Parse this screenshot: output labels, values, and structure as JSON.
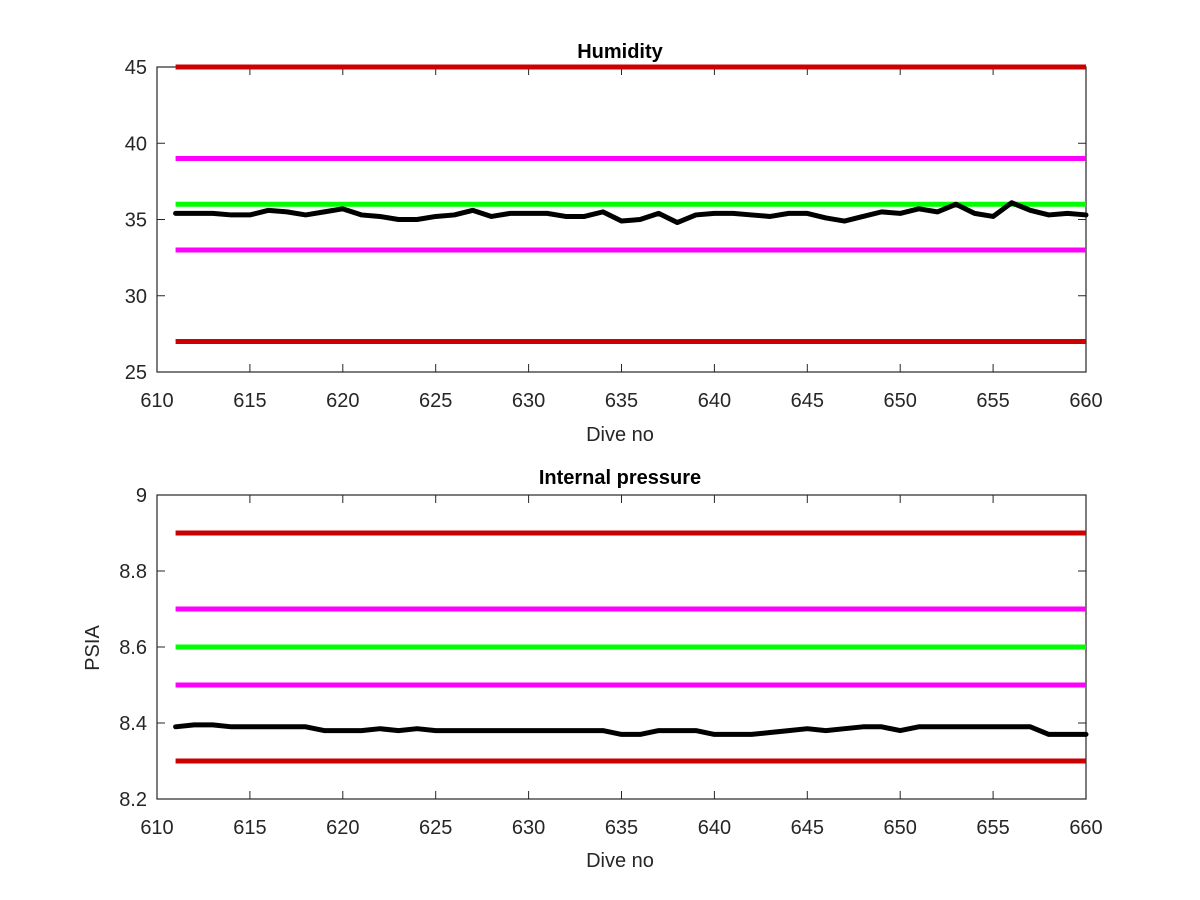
{
  "chart_data": [
    {
      "type": "line",
      "title": "Humidity",
      "xlabel": "Dive no",
      "ylabel": "",
      "xlim": [
        610,
        660
      ],
      "ylim": [
        25,
        45
      ],
      "xticks": [
        610,
        615,
        620,
        625,
        630,
        635,
        640,
        645,
        650,
        655,
        660
      ],
      "yticks": [
        25,
        30,
        35,
        40,
        45
      ],
      "grid": false,
      "legend": "none",
      "reference_lines": [
        {
          "y": 45,
          "color": "#cc0000"
        },
        {
          "y": 39,
          "color": "#ff00ff"
        },
        {
          "y": 36,
          "color": "#00ff00"
        },
        {
          "y": 33,
          "color": "#ff00ff"
        },
        {
          "y": 27,
          "color": "#cc0000"
        }
      ],
      "series": [
        {
          "color": "#000000",
          "x": [
            611,
            612,
            613,
            614,
            615,
            616,
            617,
            618,
            619,
            620,
            621,
            622,
            623,
            624,
            625,
            626,
            627,
            628,
            629,
            630,
            631,
            632,
            633,
            634,
            635,
            636,
            637,
            638,
            639,
            640,
            641,
            642,
            643,
            644,
            645,
            646,
            647,
            648,
            649,
            650,
            651,
            652,
            653,
            654,
            655,
            656,
            657,
            658,
            659,
            660
          ],
          "values": [
            35.4,
            35.4,
            35.4,
            35.3,
            35.3,
            35.6,
            35.5,
            35.3,
            35.5,
            35.7,
            35.3,
            35.2,
            35.0,
            35.0,
            35.2,
            35.3,
            35.6,
            35.2,
            35.4,
            35.4,
            35.4,
            35.2,
            35.2,
            35.5,
            34.9,
            35.0,
            35.4,
            34.8,
            35.3,
            35.4,
            35.4,
            35.3,
            35.2,
            35.4,
            35.4,
            35.1,
            34.9,
            35.2,
            35.5,
            35.4,
            35.7,
            35.5,
            36.0,
            35.4,
            35.2,
            36.1,
            35.6,
            35.3,
            35.4,
            35.3
          ]
        }
      ]
    },
    {
      "type": "line",
      "title": "Internal pressure",
      "xlabel": "Dive no",
      "ylabel": "PSIA",
      "xlim": [
        610,
        660
      ],
      "ylim": [
        8.2,
        9
      ],
      "xticks": [
        610,
        615,
        620,
        625,
        630,
        635,
        640,
        645,
        650,
        655,
        660
      ],
      "yticks": [
        8.2,
        8.4,
        8.6,
        8.8,
        9
      ],
      "ytick_labels": [
        "8.2",
        "8.4",
        "8.6",
        "8.8",
        "9"
      ],
      "grid": false,
      "legend": "none",
      "reference_lines": [
        {
          "y": 8.9,
          "color": "#cc0000"
        },
        {
          "y": 8.7,
          "color": "#ff00ff"
        },
        {
          "y": 8.6,
          "color": "#00ff00"
        },
        {
          "y": 8.5,
          "color": "#ff00ff"
        },
        {
          "y": 8.3,
          "color": "#cc0000"
        }
      ],
      "series": [
        {
          "color": "#000000",
          "x": [
            611,
            612,
            613,
            614,
            615,
            616,
            617,
            618,
            619,
            620,
            621,
            622,
            623,
            624,
            625,
            626,
            627,
            628,
            629,
            630,
            631,
            632,
            633,
            634,
            635,
            636,
            637,
            638,
            639,
            640,
            641,
            642,
            643,
            644,
            645,
            646,
            647,
            648,
            649,
            650,
            651,
            652,
            653,
            654,
            655,
            656,
            657,
            658,
            659,
            660
          ],
          "values": [
            8.39,
            8.395,
            8.395,
            8.39,
            8.39,
            8.39,
            8.39,
            8.39,
            8.38,
            8.38,
            8.38,
            8.385,
            8.38,
            8.385,
            8.38,
            8.38,
            8.38,
            8.38,
            8.38,
            8.38,
            8.38,
            8.38,
            8.38,
            8.38,
            8.37,
            8.37,
            8.38,
            8.38,
            8.38,
            8.37,
            8.37,
            8.37,
            8.375,
            8.38,
            8.385,
            8.38,
            8.385,
            8.39,
            8.39,
            8.38,
            8.39,
            8.39,
            8.39,
            8.39,
            8.39,
            8.39,
            8.39,
            8.37,
            8.37,
            8.37
          ]
        }
      ]
    }
  ]
}
